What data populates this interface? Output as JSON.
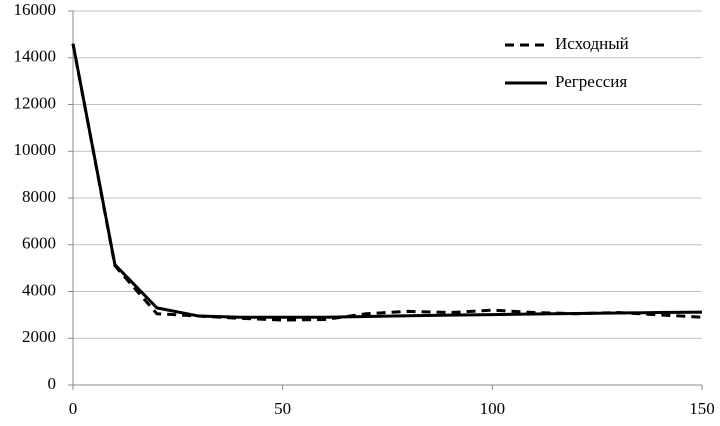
{
  "chart_data": {
    "type": "line",
    "x": [
      0,
      10,
      20,
      30,
      40,
      50,
      60,
      70,
      80,
      90,
      100,
      110,
      120,
      130,
      140,
      150
    ],
    "series": [
      {
        "name": "Исходный",
        "color": "#000000",
        "style": "dashed",
        "values": [
          14600,
          5100,
          3050,
          2950,
          2850,
          2780,
          2800,
          3050,
          3150,
          3100,
          3200,
          3100,
          3050,
          3100,
          3000,
          2900
        ]
      },
      {
        "name": "Регрессия",
        "color": "#000000",
        "style": "solid",
        "values": [
          14600,
          5150,
          3300,
          2950,
          2900,
          2900,
          2900,
          2930,
          2960,
          2990,
          3010,
          3040,
          3060,
          3080,
          3100,
          3120
        ]
      }
    ],
    "xlim": [
      0,
      150
    ],
    "xticks": [
      0,
      50,
      100,
      150
    ],
    "ylim": [
      0,
      16000
    ],
    "yticks": [
      0,
      2000,
      4000,
      6000,
      8000,
      10000,
      12000,
      14000,
      16000
    ],
    "grid": true,
    "legend": "upper-right"
  }
}
